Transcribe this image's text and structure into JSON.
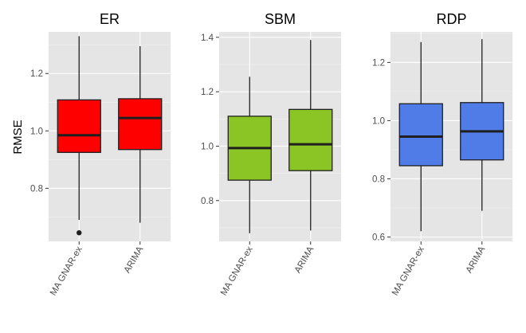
{
  "chart_data": {
    "type": "boxplot",
    "y_label": "RMSE",
    "panels": [
      {
        "title": "ER",
        "fill": "#ff0000",
        "ylim": [
          0.615,
          1.345
        ],
        "yticks": [
          0.8,
          1.0,
          1.2
        ],
        "tick_labels": [
          "0.8",
          "1.0",
          "1.2"
        ],
        "categories": [
          "MA GNAR-ex",
          "ARIMA"
        ],
        "boxes": [
          {
            "lower": 0.69,
            "q1": 0.925,
            "median": 0.985,
            "q3": 1.108,
            "upper": 1.33,
            "outliers": [
              0.645
            ]
          },
          {
            "lower": 0.68,
            "q1": 0.935,
            "median": 1.045,
            "q3": 1.112,
            "upper": 1.295,
            "outliers": []
          }
        ]
      },
      {
        "title": "SBM",
        "fill": "#8bc425",
        "ylim": [
          0.65,
          1.42
        ],
        "yticks": [
          0.8,
          1.0,
          1.2,
          1.4
        ],
        "tick_labels": [
          "0.8",
          "1.0",
          "1.2",
          "1.4"
        ],
        "categories": [
          "MA GNAR-ex",
          "ARIMA"
        ],
        "boxes": [
          {
            "lower": 0.68,
            "q1": 0.875,
            "median": 0.993,
            "q3": 1.11,
            "upper": 1.255,
            "outliers": []
          },
          {
            "lower": 0.69,
            "q1": 0.91,
            "median": 1.007,
            "q3": 1.135,
            "upper": 1.39,
            "outliers": []
          }
        ]
      },
      {
        "title": "RDP",
        "fill": "#4f7ce6",
        "ylim": [
          0.585,
          1.305
        ],
        "yticks": [
          0.6,
          0.8,
          1.0,
          1.2
        ],
        "tick_labels": [
          "0.6",
          "0.8",
          "1.0",
          "1.2"
        ],
        "categories": [
          "MA GNAR-ex",
          "ARIMA"
        ],
        "boxes": [
          {
            "lower": 0.62,
            "q1": 0.845,
            "median": 0.945,
            "q3": 1.058,
            "upper": 1.27,
            "outliers": []
          },
          {
            "lower": 0.69,
            "q1": 0.865,
            "median": 0.963,
            "q3": 1.062,
            "upper": 1.28,
            "outliers": []
          }
        ]
      }
    ]
  }
}
